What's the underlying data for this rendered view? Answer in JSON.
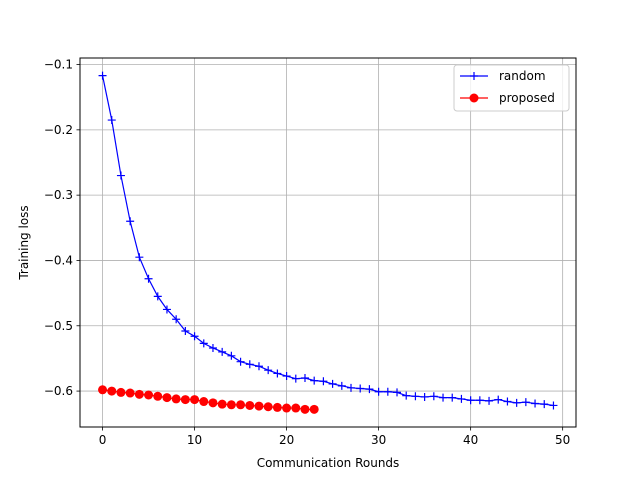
{
  "chart_data": {
    "type": "line",
    "title": "",
    "xlabel": "Communication Rounds",
    "ylabel": "Training loss",
    "xlim": [
      -2.45,
      51.45
    ],
    "ylim": [
      -0.655,
      -0.09
    ],
    "xticks": [
      0,
      10,
      20,
      30,
      40,
      50
    ],
    "xtick_labels": [
      "0",
      "10",
      "20",
      "30",
      "40",
      "50"
    ],
    "yticks": [
      -0.1,
      -0.2,
      -0.3,
      -0.4,
      -0.5,
      -0.6
    ],
    "ytick_labels": [
      "−0.1",
      "−0.2",
      "−0.3",
      "−0.4",
      "−0.5",
      "−0.6"
    ],
    "grid": true,
    "legend_position": "top-right",
    "series": [
      {
        "name": "random",
        "color": "#0000ff",
        "marker": "plus",
        "x": [
          0,
          1,
          2,
          3,
          4,
          5,
          6,
          7,
          8,
          9,
          10,
          11,
          12,
          13,
          14,
          15,
          16,
          17,
          18,
          19,
          20,
          21,
          22,
          23,
          24,
          25,
          26,
          27,
          28,
          29,
          30,
          31,
          32,
          33,
          34,
          35,
          36,
          37,
          38,
          39,
          40,
          41,
          42,
          43,
          44,
          45,
          46,
          47,
          48,
          49
        ],
        "y": [
          -0.117,
          -0.185,
          -0.27,
          -0.34,
          -0.395,
          -0.428,
          -0.455,
          -0.475,
          -0.49,
          -0.508,
          -0.516,
          -0.527,
          -0.534,
          -0.54,
          -0.546,
          -0.555,
          -0.559,
          -0.562,
          -0.568,
          -0.573,
          -0.577,
          -0.581,
          -0.58,
          -0.584,
          -0.585,
          -0.589,
          -0.592,
          -0.595,
          -0.596,
          -0.597,
          -0.601,
          -0.601,
          -0.602,
          -0.607,
          -0.608,
          -0.609,
          -0.608,
          -0.61,
          -0.61,
          -0.612,
          -0.614,
          -0.614,
          -0.615,
          -0.613,
          -0.616,
          -0.618,
          -0.617,
          -0.619,
          -0.62,
          -0.622
        ]
      },
      {
        "name": "proposed",
        "color": "#ff0000",
        "marker": "circle",
        "x": [
          0,
          1,
          2,
          3,
          4,
          5,
          6,
          7,
          8,
          9,
          10,
          11,
          12,
          13,
          14,
          15,
          16,
          17,
          18,
          19,
          20,
          21,
          22,
          23
        ],
        "y": [
          -0.598,
          -0.6,
          -0.602,
          -0.603,
          -0.605,
          -0.606,
          -0.608,
          -0.61,
          -0.612,
          -0.613,
          -0.613,
          -0.616,
          -0.618,
          -0.62,
          -0.621,
          -0.621,
          -0.622,
          -0.623,
          -0.624,
          -0.625,
          -0.626,
          -0.626,
          -0.628,
          -0.628
        ]
      }
    ]
  }
}
